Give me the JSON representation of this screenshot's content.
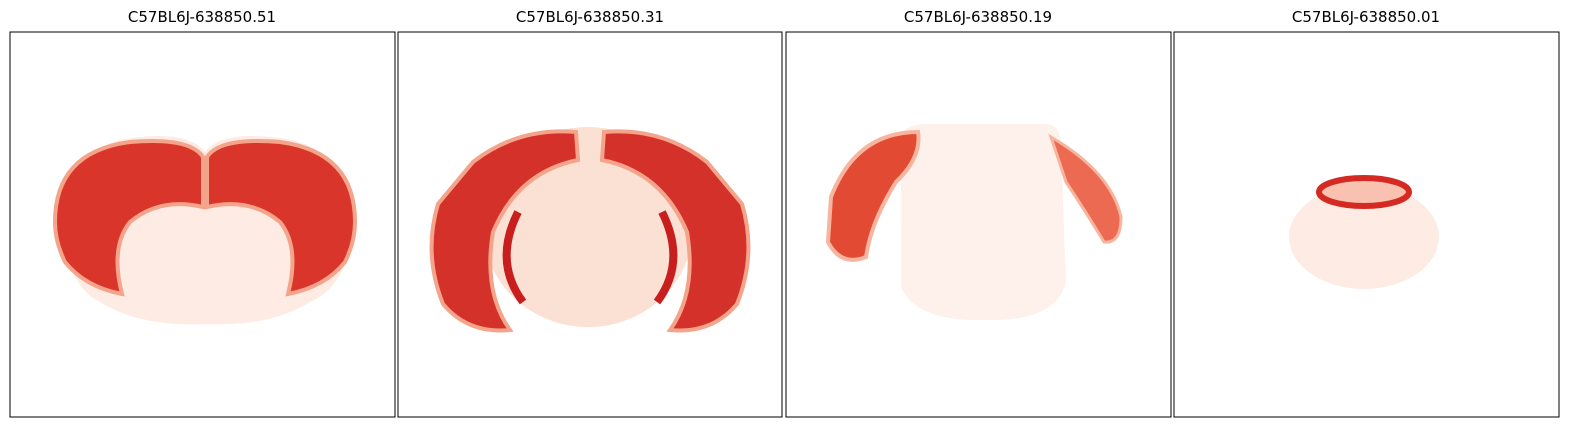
{
  "panels": [
    {
      "title": "C57BL6J-638850.51"
    },
    {
      "title": "C57BL6J-638850.31"
    },
    {
      "title": "C57BL6J-638850.19"
    },
    {
      "title": "C57BL6J-638850.01"
    }
  ]
}
